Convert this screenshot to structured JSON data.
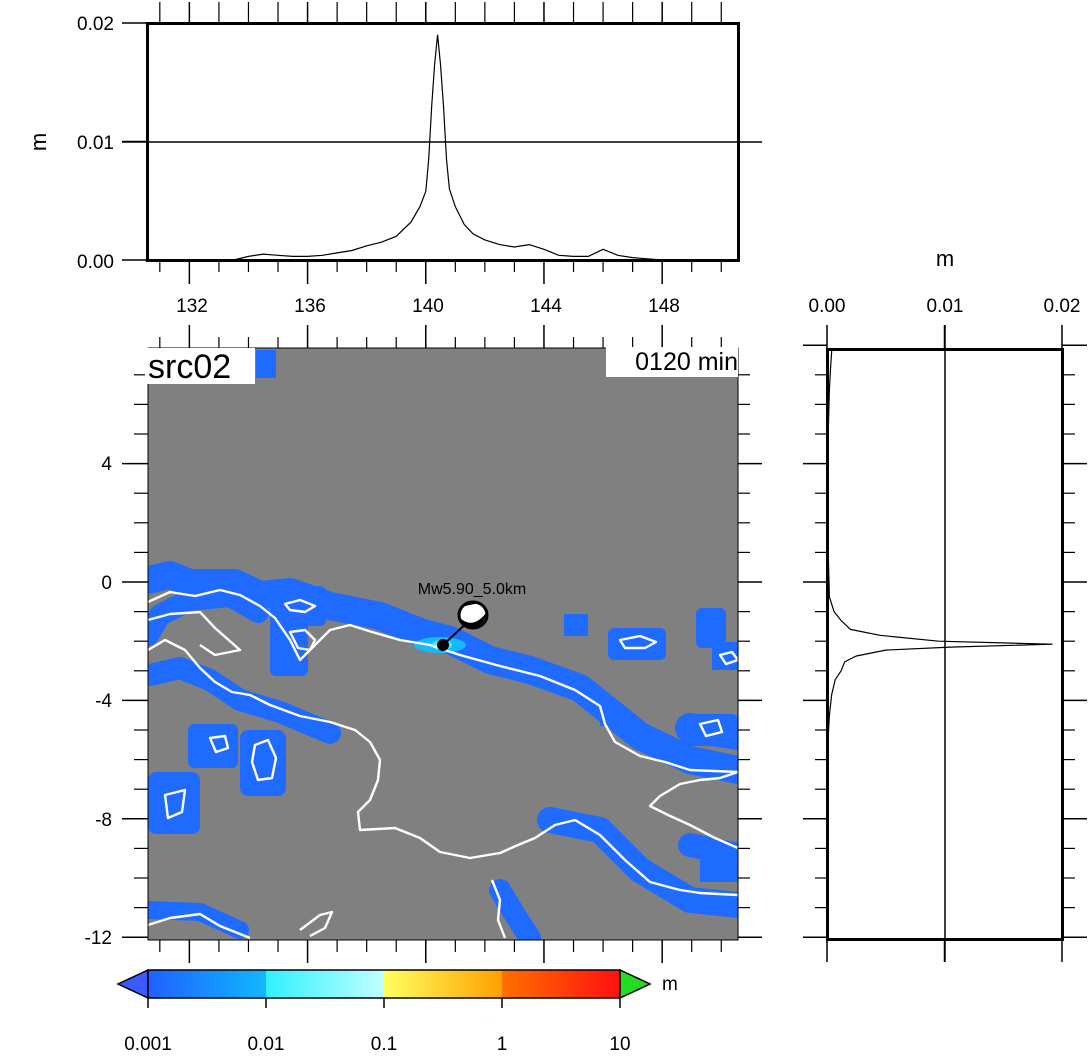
{
  "title_label": "src02",
  "time_label": "0120 min",
  "source": {
    "label": "Mw5.90_5.0km",
    "lon": 140.4,
    "lat": -2.1
  },
  "top_panel": {
    "ylabel": "m",
    "yticks": [
      "0.00",
      "0.01",
      "0.02"
    ],
    "xticks": [
      "132",
      "136",
      "140",
      "144",
      "148"
    ],
    "series": {
      "x": [
        130.5,
        131.5,
        132.5,
        133.5,
        134.0,
        134.5,
        135.0,
        135.5,
        136.0,
        136.5,
        137.0,
        137.5,
        138.0,
        138.5,
        139.0,
        139.5,
        139.8,
        140.0,
        140.1,
        140.2,
        140.3,
        140.4,
        140.5,
        140.6,
        140.7,
        140.8,
        141.0,
        141.3,
        141.6,
        142.0,
        142.5,
        143.0,
        143.5,
        144.0,
        144.5,
        145.0,
        145.5,
        146.0,
        146.5,
        147.0,
        147.5,
        148.0,
        149.0,
        150.3
      ],
      "y": [
        0.0,
        0.0,
        0.0,
        0.0,
        0.0003,
        0.0005,
        0.0004,
        0.0003,
        0.0003,
        0.0004,
        0.0006,
        0.0008,
        0.0012,
        0.0015,
        0.002,
        0.0032,
        0.0045,
        0.0058,
        0.0085,
        0.013,
        0.0165,
        0.019,
        0.0165,
        0.013,
        0.0085,
        0.006,
        0.0045,
        0.003,
        0.0022,
        0.0017,
        0.0013,
        0.0011,
        0.0013,
        0.0009,
        0.0004,
        0.0003,
        0.0003,
        0.0009,
        0.0004,
        0.0002,
        0.0001,
        0.0,
        0.0,
        0.0
      ]
    }
  },
  "right_panel": {
    "xlabel": "m",
    "xticks": [
      "0.00",
      "0.01",
      "0.02"
    ],
    "series": {
      "lat": [
        7.8,
        7.2,
        6.5,
        5.0,
        3.0,
        1.0,
        -0.5,
        -1.0,
        -1.3,
        -1.6,
        -1.8,
        -2.0,
        -2.1,
        -2.2,
        -2.3,
        -2.5,
        -2.7,
        -3.0,
        -3.3,
        -3.8,
        -4.5,
        -6.0,
        -8.0,
        -10.0,
        -12.2
      ],
      "val": [
        0.0004,
        0.0003,
        0.0002,
        0.0001,
        0.0001,
        0.0001,
        0.0002,
        0.0006,
        0.0012,
        0.002,
        0.0045,
        0.0095,
        0.0192,
        0.0105,
        0.005,
        0.0025,
        0.0015,
        0.0012,
        0.0007,
        0.0004,
        0.0002,
        0.0,
        0.0,
        0.0,
        0.0
      ]
    }
  },
  "map": {
    "yticks": [
      "4",
      "0",
      "-4",
      "-8",
      "-12"
    ],
    "ocean_color": "#808080",
    "coast_color": "#ffffff",
    "wave_color": "#1f6bff"
  },
  "colorbar": {
    "unit": "m",
    "labels": [
      "0.001",
      "0.01",
      "0.1",
      "1",
      "10"
    ],
    "under_color": "#3b5bff",
    "over_color": "#22dd22"
  },
  "chart_data": {
    "type": "line",
    "title": "src02",
    "xlabel": "",
    "ylabel": "m",
    "xlim": [
      130.6,
      150.3
    ],
    "ylim": [
      0,
      0.02
    ],
    "series": [
      {
        "x": [
          130.5,
          131.5,
          132.5,
          133.5,
          134.0,
          134.5,
          135.0,
          135.5,
          136.0,
          136.5,
          137.0,
          137.5,
          138.0,
          138.5,
          139.0,
          139.5,
          139.8,
          140.0,
          140.1,
          140.2,
          140.3,
          140.4,
          140.5,
          140.6,
          140.7,
          140.8,
          141.0,
          141.3,
          141.6,
          142.0,
          142.5,
          143.0,
          143.5,
          144.0,
          144.5,
          145.0,
          145.5,
          146.0,
          146.5,
          147.0,
          147.5,
          148.0,
          149.0,
          150.3
        ],
        "values": [
          0.0,
          0.0,
          0.0,
          0.0,
          0.0003,
          0.0005,
          0.0004,
          0.0003,
          0.0003,
          0.0004,
          0.0006,
          0.0008,
          0.0012,
          0.0015,
          0.002,
          0.0032,
          0.0045,
          0.0058,
          0.0085,
          0.013,
          0.0165,
          0.019,
          0.0165,
          0.013,
          0.0085,
          0.006,
          0.0045,
          0.003,
          0.0022,
          0.0017,
          0.0013,
          0.0011,
          0.0013,
          0.0009,
          0.0004,
          0.0003,
          0.0003,
          0.0009,
          0.0004,
          0.0002,
          0.0001,
          0.0,
          0.0,
          0.0
        ]
      }
    ]
  }
}
